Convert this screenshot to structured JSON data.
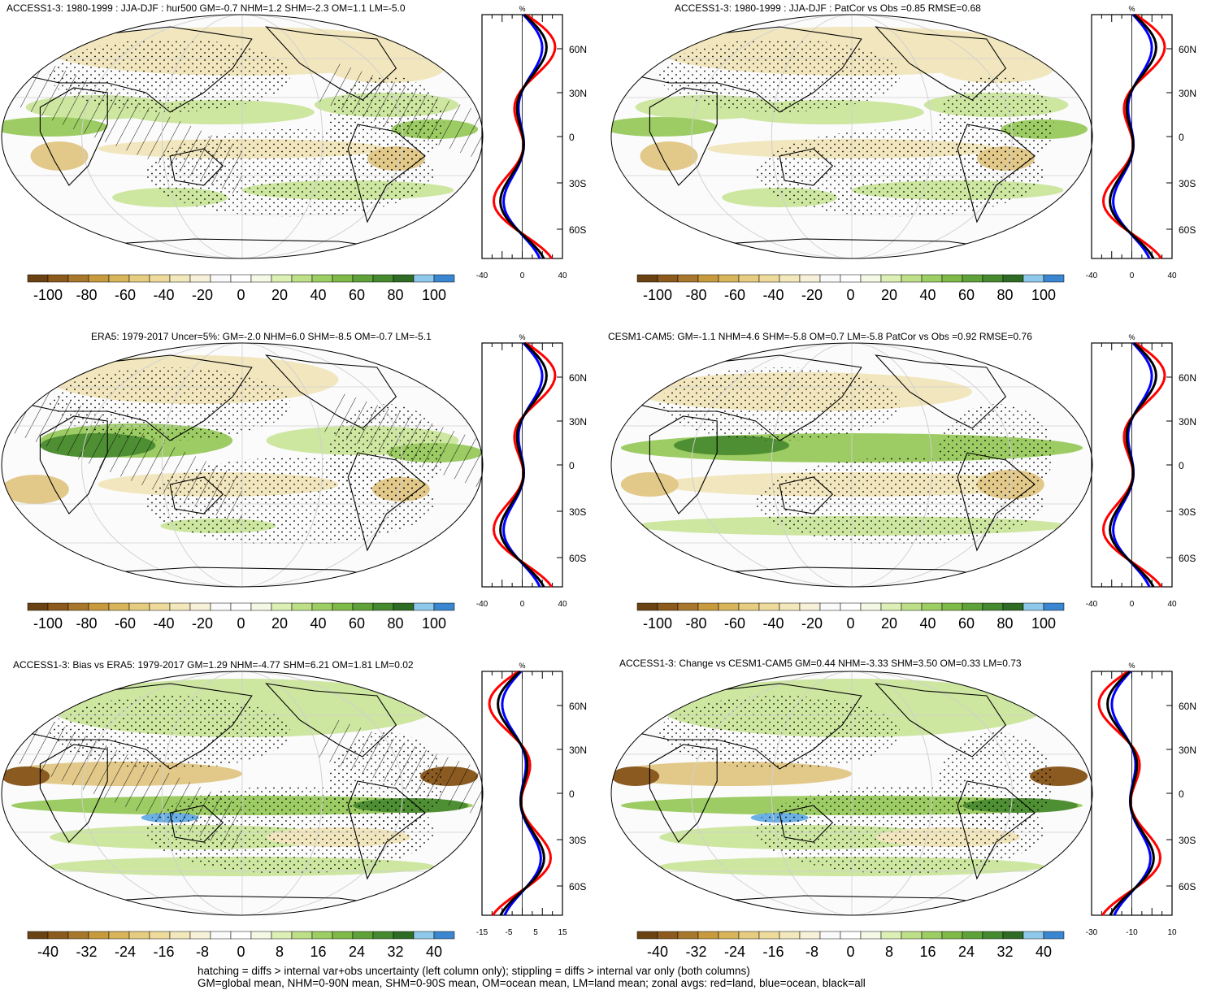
{
  "legend_colors": [
    "#6b4313",
    "#8c5a1c",
    "#a9772c",
    "#c89a3e",
    "#d8b45b",
    "#e6cc80",
    "#eedb9c",
    "#f3e8bb",
    "#f7f1d9",
    "#fafafa",
    "#ffffff",
    "#f4f9e6",
    "#dcefb4",
    "#bddf88",
    "#9dce63",
    "#7fba49",
    "#5fa239",
    "#468a30",
    "#2e6c25",
    "#8ec9ec",
    "#3b86d0"
  ],
  "map_colors": {
    "ocean_bg": "#fbfbfb",
    "green_light": "#cde6a0",
    "green_mid": "#9ccc63",
    "green_dark": "#4f8f33",
    "tan_light": "#f1e6bd",
    "tan_mid": "#e2c98a",
    "brown": "#8a5a20",
    "blue": "#6aafe6",
    "land_line": "#000000"
  },
  "zonal_colors": {
    "land": "#ff0000",
    "ocean": "#0000ff",
    "all": "#000000"
  },
  "panels": [
    {
      "title": "ACCESS1-3: 1980-1999 : JJA-DJF : hur500 GM=-0.7 NHM=1.2 SHM=-2.3 OM=1.1 LM=-5.0",
      "colorbar_labels": [
        "-100",
        "-80",
        "-60",
        "-40",
        "-20",
        "0",
        "20",
        "40",
        "60",
        "80",
        "100"
      ],
      "zonal_xticks": [
        "-40",
        "0",
        "40"
      ],
      "zonal_unit": "%",
      "lat_labels": [
        "60N",
        "30N",
        "0",
        "30S",
        "60S"
      ]
    },
    {
      "title": "ACCESS1-3: 1980-1999 : JJA-DJF : PatCor vs Obs =0.85 RMSE=0.68",
      "colorbar_labels": [
        "-100",
        "-80",
        "-60",
        "-40",
        "-20",
        "0",
        "20",
        "40",
        "60",
        "80",
        "100"
      ],
      "zonal_xticks": [
        "-40",
        "0",
        "40"
      ],
      "zonal_unit": "%",
      "lat_labels": [
        "60N",
        "30N",
        "0",
        "30S",
        "60S"
      ]
    },
    {
      "title": "ERA5: 1979-2017 Uncer=5%: GM=-2.0 NHM=6.0 SHM=-8.5 OM=-0.7 LM=-5.1",
      "colorbar_labels": [
        "-100",
        "-80",
        "-60",
        "-40",
        "-20",
        "0",
        "20",
        "40",
        "60",
        "80",
        "100"
      ],
      "zonal_xticks": [
        "-40",
        "0",
        "40"
      ],
      "zonal_unit": "%",
      "lat_labels": [
        "60N",
        "30N",
        "0",
        "30S",
        "60S"
      ]
    },
    {
      "title": "CESM1-CAM5: GM=-1.1 NHM=4.6 SHM=-5.8 OM=0.7 LM=-5.8 PatCor vs Obs =0.92 RMSE=0.76",
      "colorbar_labels": [
        "-100",
        "-80",
        "-60",
        "-40",
        "-20",
        "0",
        "20",
        "40",
        "60",
        "80",
        "100"
      ],
      "zonal_xticks": [
        "-40",
        "0",
        "40"
      ],
      "zonal_unit": "%",
      "lat_labels": [
        "60N",
        "30N",
        "0",
        "30S",
        "60S"
      ]
    },
    {
      "title": "ACCESS1-3: Bias vs ERA5: 1979-2017 GM=1.29 NHM=-4.77 SHM=6.21 OM=1.81 LM=0.02",
      "colorbar_labels": [
        "-40",
        "-32",
        "-24",
        "-16",
        "-8",
        "0",
        "8",
        "16",
        "24",
        "32",
        "40"
      ],
      "zonal_xticks": [
        "-15",
        "-5",
        "5",
        "15"
      ],
      "zonal_unit": "%",
      "lat_labels": [
        "60N",
        "30N",
        "0",
        "30S",
        "60S"
      ]
    },
    {
      "title": "ACCESS1-3: Change vs CESM1-CAM5 GM=0.44 NHM=-3.33 SHM=3.50 OM=0.33 LM=0.73",
      "colorbar_labels": [
        "-40",
        "-32",
        "-24",
        "-16",
        "-8",
        "0",
        "8",
        "16",
        "24",
        "32",
        "40"
      ],
      "zonal_xticks": [
        "-30",
        "-10",
        "10"
      ],
      "zonal_unit": "%",
      "lat_labels": [
        "60N",
        "30N",
        "0",
        "30S",
        "60S"
      ]
    }
  ],
  "footer": {
    "line1": "hatching = diffs > internal var+obs uncertainty (left column only); stippling = diffs > internal var only (both columns)",
    "line2": "GM=global mean, NHM=0-90N mean, SHM=0-90S mean, OM=ocean mean, LM=land mean; zonal avgs: red=land, blue=ocean, black=all"
  }
}
